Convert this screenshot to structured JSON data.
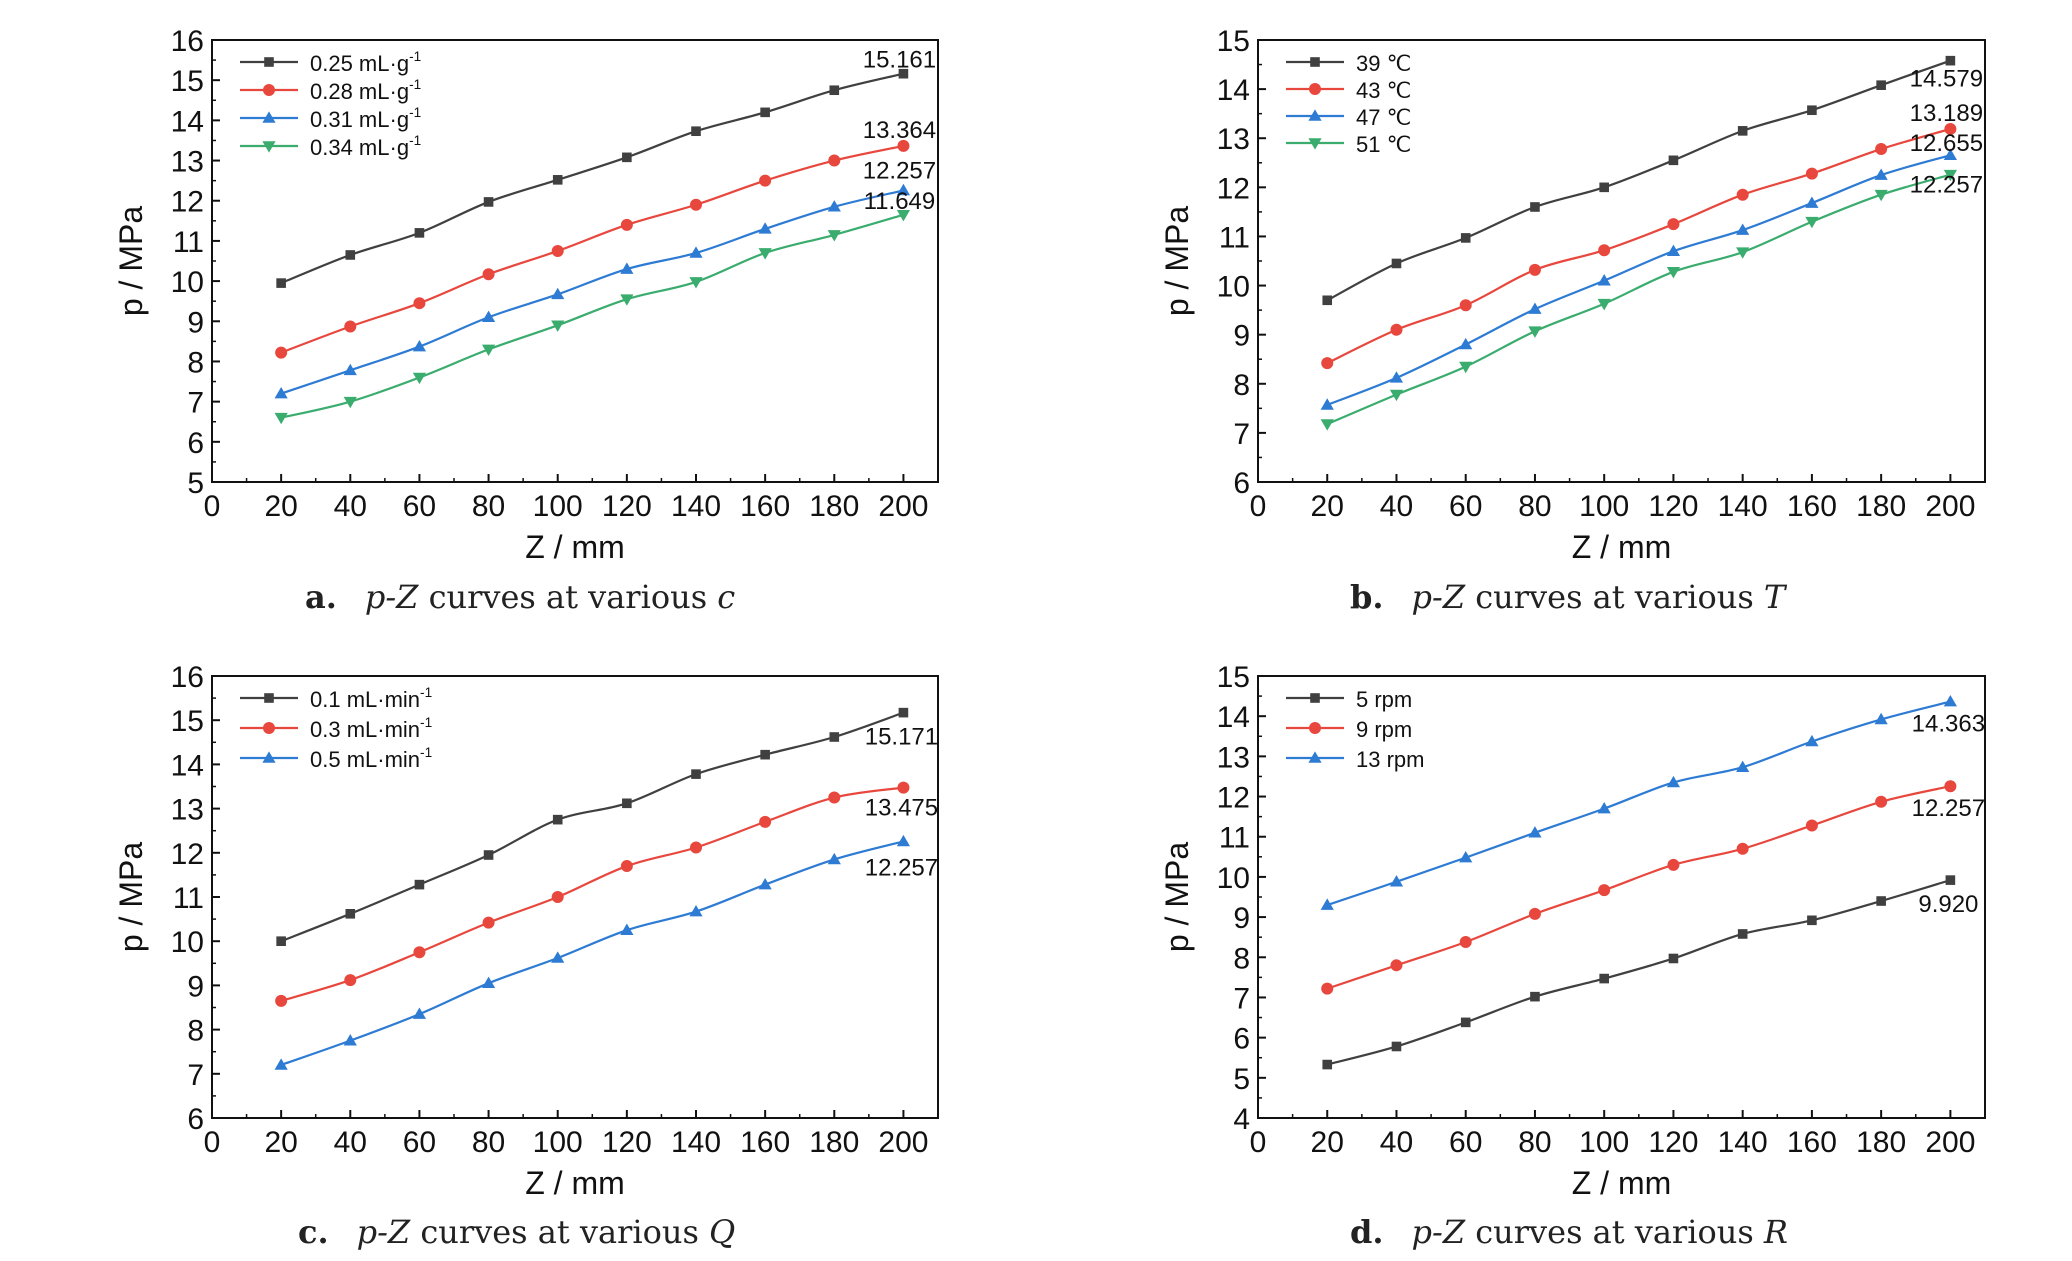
{
  "chart_data": [
    {
      "type": "line",
      "caption": {
        "letter": "a.",
        "prefix": "p-Z",
        "middle": " curves at various ",
        "var": "c"
      },
      "xlabel": "Z / mm",
      "ylabel": "p / MPa",
      "xlim": [
        0,
        210
      ],
      "ylim": [
        5,
        16
      ],
      "xticks": [
        0,
        20,
        40,
        60,
        80,
        100,
        120,
        140,
        160,
        180,
        200
      ],
      "yticks": [
        5,
        6,
        7,
        8,
        9,
        10,
        11,
        12,
        13,
        14,
        15,
        16
      ],
      "legend_position": "top-left",
      "x": [
        20,
        40,
        60,
        80,
        100,
        120,
        140,
        160,
        180,
        200
      ],
      "series": [
        {
          "name": "0.25 mL·g⁻¹",
          "color": "#404040",
          "marker": "square",
          "values": [
            9.95,
            10.65,
            11.2,
            11.97,
            12.52,
            13.08,
            13.73,
            14.2,
            14.75,
            15.161
          ]
        },
        {
          "name": "0.28 mL·g⁻¹",
          "color": "#e8473d",
          "marker": "circle",
          "values": [
            8.22,
            8.87,
            9.45,
            10.17,
            10.75,
            11.4,
            11.9,
            12.5,
            13.0,
            13.364
          ]
        },
        {
          "name": "0.31 mL·g⁻¹",
          "color": "#2e7bd4",
          "marker": "triangle-up",
          "values": [
            7.2,
            7.78,
            8.37,
            9.1,
            9.67,
            10.3,
            10.7,
            11.3,
            11.85,
            12.257
          ]
        },
        {
          "name": "0.34 mL·g⁻¹",
          "color": "#3aac6e",
          "marker": "triangle-down",
          "values": [
            6.6,
            7.0,
            7.6,
            8.3,
            8.9,
            9.55,
            9.98,
            10.7,
            11.15,
            11.649
          ]
        }
      ],
      "annotations": [
        {
          "text": "15.161",
          "series": 0
        },
        {
          "text": "13.364",
          "series": 1
        },
        {
          "text": "12.257",
          "series": 2
        },
        {
          "text": "11.649",
          "series": 3
        }
      ]
    },
    {
      "type": "line",
      "caption": {
        "letter": "b.",
        "prefix": "p-Z",
        "middle": " curves at various ",
        "var": "T"
      },
      "xlabel": "Z / mm",
      "ylabel": "p / MPa",
      "xlim": [
        0,
        210
      ],
      "ylim": [
        6,
        15
      ],
      "xticks": [
        0,
        20,
        40,
        60,
        80,
        100,
        120,
        140,
        160,
        180,
        200
      ],
      "yticks": [
        6,
        7,
        8,
        9,
        10,
        11,
        12,
        13,
        14,
        15
      ],
      "legend_position": "top-left",
      "x": [
        20,
        40,
        60,
        80,
        100,
        120,
        140,
        160,
        180,
        200
      ],
      "series": [
        {
          "name": "39 ℃",
          "color": "#404040",
          "marker": "square",
          "values": [
            9.7,
            10.45,
            10.97,
            11.6,
            12.0,
            12.55,
            13.15,
            13.57,
            14.08,
            14.579
          ]
        },
        {
          "name": "43 ℃",
          "color": "#e8473d",
          "marker": "circle",
          "values": [
            8.42,
            9.1,
            9.6,
            10.32,
            10.72,
            11.25,
            11.85,
            12.28,
            12.78,
            13.189
          ]
        },
        {
          "name": "47 ℃",
          "color": "#2e7bd4",
          "marker": "triangle-up",
          "values": [
            7.57,
            8.12,
            8.8,
            9.52,
            10.1,
            10.7,
            11.13,
            11.68,
            12.25,
            12.655
          ]
        },
        {
          "name": "51 ℃",
          "color": "#3aac6e",
          "marker": "triangle-down",
          "values": [
            7.18,
            7.78,
            8.35,
            9.07,
            9.63,
            10.28,
            10.68,
            11.3,
            11.85,
            12.257
          ]
        }
      ],
      "annotations": [
        {
          "text": "14.579",
          "series": 0
        },
        {
          "text": "13.189",
          "series": 1
        },
        {
          "text": "12.655",
          "series": 2
        },
        {
          "text": "12.257",
          "series": 3
        }
      ]
    },
    {
      "type": "line",
      "caption": {
        "letter": "c.",
        "prefix": "p-Z",
        "middle": " curves at various ",
        "var": "Q"
      },
      "xlabel": "Z / mm",
      "ylabel": "p / MPa",
      "xlim": [
        0,
        210
      ],
      "ylim": [
        6,
        16
      ],
      "xticks": [
        0,
        20,
        40,
        60,
        80,
        100,
        120,
        140,
        160,
        180,
        200
      ],
      "yticks": [
        6,
        7,
        8,
        9,
        10,
        11,
        12,
        13,
        14,
        15,
        16
      ],
      "legend_position": "top-left",
      "x": [
        20,
        40,
        60,
        80,
        100,
        120,
        140,
        160,
        180,
        200
      ],
      "series": [
        {
          "name": "0.1 mL·min⁻¹",
          "color": "#404040",
          "marker": "square",
          "values": [
            10.0,
            10.62,
            11.28,
            11.95,
            12.75,
            13.12,
            13.78,
            14.22,
            14.62,
            15.171
          ]
        },
        {
          "name": "0.3 mL·min⁻¹",
          "color": "#e8473d",
          "marker": "circle",
          "values": [
            8.65,
            9.12,
            9.75,
            10.42,
            11.0,
            11.7,
            12.12,
            12.7,
            13.25,
            13.475
          ]
        },
        {
          "name": "0.5 mL·min⁻¹",
          "color": "#2e7bd4",
          "marker": "triangle-up",
          "values": [
            7.2,
            7.75,
            8.35,
            9.05,
            9.62,
            10.25,
            10.67,
            11.28,
            11.85,
            12.257
          ]
        }
      ],
      "annotations": [
        {
          "text": "15.171",
          "series": 0
        },
        {
          "text": "13.475",
          "series": 1
        },
        {
          "text": "12.257",
          "series": 2
        }
      ]
    },
    {
      "type": "line",
      "caption": {
        "letter": "d.",
        "prefix": "p-Z",
        "middle": " curves at various ",
        "var": "R"
      },
      "xlabel": "Z / mm",
      "ylabel": "p / MPa",
      "xlim": [
        0,
        210
      ],
      "ylim": [
        4,
        15
      ],
      "xticks": [
        0,
        20,
        40,
        60,
        80,
        100,
        120,
        140,
        160,
        180,
        200
      ],
      "yticks": [
        4,
        5,
        6,
        7,
        8,
        9,
        10,
        11,
        12,
        13,
        14,
        15
      ],
      "legend_position": "top-left",
      "x": [
        20,
        40,
        60,
        80,
        100,
        120,
        140,
        160,
        180,
        200
      ],
      "series": [
        {
          "name": "5 rpm",
          "color": "#404040",
          "marker": "square",
          "values": [
            5.33,
            5.78,
            6.38,
            7.02,
            7.47,
            7.97,
            8.58,
            8.92,
            9.4,
            9.92
          ]
        },
        {
          "name": "9 rpm",
          "color": "#e8473d",
          "marker": "circle",
          "values": [
            7.22,
            7.8,
            8.38,
            9.08,
            9.67,
            10.3,
            10.7,
            11.28,
            11.87,
            12.257
          ]
        },
        {
          "name": "13 rpm",
          "color": "#2e7bd4",
          "marker": "triangle-up",
          "values": [
            9.3,
            9.88,
            10.48,
            11.1,
            11.7,
            12.35,
            12.73,
            13.37,
            13.92,
            14.363
          ]
        }
      ],
      "annotations": [
        {
          "text": "14.363",
          "series": 2
        },
        {
          "text": "12.257",
          "series": 1
        },
        {
          "text": "9.920",
          "series": 0
        }
      ]
    }
  ]
}
